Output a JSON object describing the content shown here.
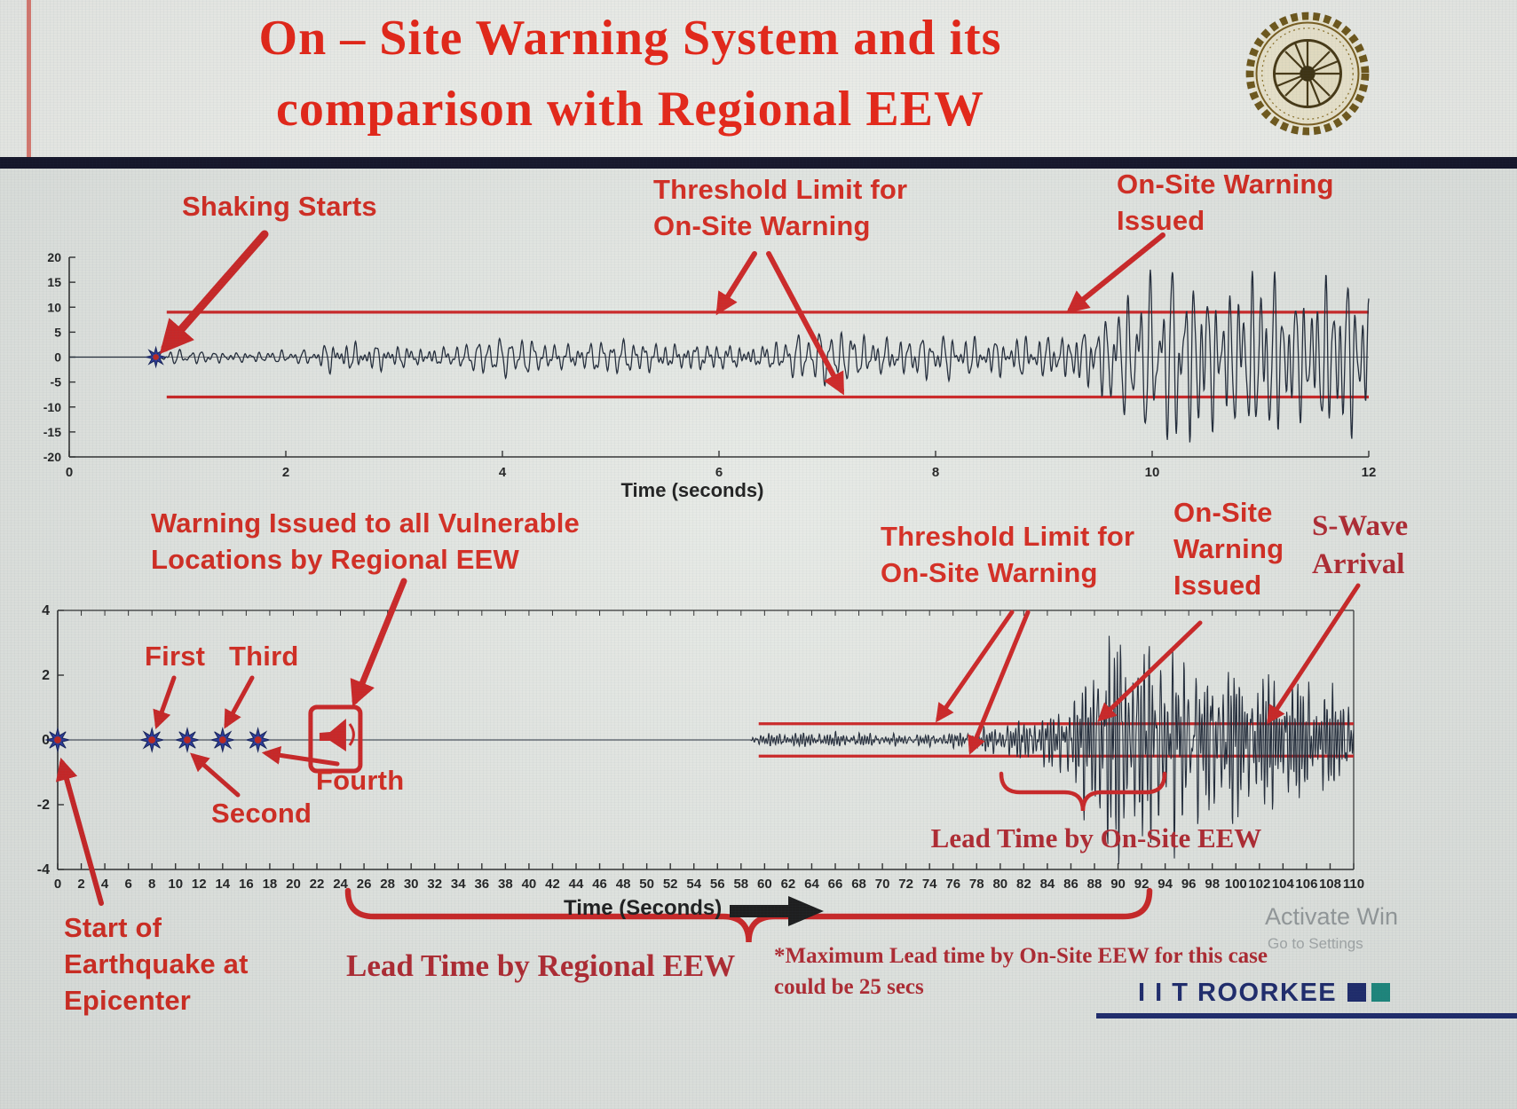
{
  "slide": {
    "title": "On – Site Warning System and its\ncomparison with Regional EEW"
  },
  "colors": {
    "title_red": "#ee1e0e",
    "annotation_red": "#d8251a",
    "serif_red": "#b3232b",
    "threshold_red": "#cf1f1f",
    "waveform": "#1b2433",
    "marker_blue": "#24359c",
    "marker_center_red": "#c22018",
    "brand_navy": "#18256b"
  },
  "labels": {
    "shaking_starts": "Shaking Starts",
    "threshold_limit_1": "Threshold Limit for\nOn-Site Warning",
    "onsite_warning_issued_1": "On-Site Warning\nIssued",
    "regional_warning": "Warning Issued to all Vulnerable\nLocations by Regional EEW",
    "threshold_limit_2": "Threshold Limit for\nOn-Site Warning",
    "onsite_warning_issued_2": "On-Site\nWarning\nIssued",
    "s_wave_arrival": "S-Wave\nArrival",
    "first": "First",
    "second": "Second",
    "third": "Third",
    "fourth": "Fourth",
    "lead_time_onsite": "Lead Time by On-Site EEW",
    "start_epicenter": "Start of\nEarthquake at\nEpicenter",
    "lead_time_regional": "Lead Time by Regional EEW",
    "max_lead_note": "*Maximum Lead time by On-Site EEW for this case\ncould be 25 secs",
    "brand": "I I T ROORKEE",
    "watermark_1": "Activate Win",
    "watermark_2": "Go to Settings"
  },
  "chart_data": [
    {
      "type": "line",
      "name": "on-site-warning-seismogram",
      "xlabel": "Time (seconds)",
      "xlim": [
        0,
        12
      ],
      "xticks": [
        0,
        2,
        4,
        6,
        8,
        10,
        12
      ],
      "ylim": [
        -20,
        20
      ],
      "yticks": [
        20,
        15,
        10,
        5,
        0,
        -5,
        -10,
        -15,
        -20
      ],
      "grid": false,
      "threshold_upper": 9,
      "threshold_lower": -8,
      "threshold_start_x": 0.9,
      "event_marker_x": 0.8,
      "envelope": [
        [
          0,
          0
        ],
        [
          0.78,
          0
        ],
        [
          0.85,
          1.0
        ],
        [
          1.5,
          1.1
        ],
        [
          2.2,
          1.4
        ],
        [
          2.45,
          4.0
        ],
        [
          3.0,
          3.2
        ],
        [
          3.6,
          2.8
        ],
        [
          4.4,
          3.8
        ],
        [
          5.4,
          4.3
        ],
        [
          6.4,
          3.8
        ],
        [
          7.4,
          4.8
        ],
        [
          8.4,
          4.2
        ],
        [
          9.1,
          4.6
        ],
        [
          9.5,
          7.5
        ],
        [
          10.0,
          11
        ],
        [
          10.35,
          16
        ],
        [
          10.7,
          12.5
        ],
        [
          11.05,
          15
        ],
        [
          11.35,
          11
        ],
        [
          11.65,
          15
        ],
        [
          12,
          12.5
        ]
      ],
      "annotations": [
        {
          "label": "Shaking Starts",
          "points_to_x": 0.8
        },
        {
          "label": "Threshold Limit for On-Site Warning",
          "points_to": "upper and lower red threshold lines"
        },
        {
          "label": "On-Site Warning Issued",
          "points_to_x": 9.2
        }
      ]
    },
    {
      "type": "line",
      "name": "regional-vs-onsite-comparison-seismogram",
      "xlabel": "Time (Seconds)",
      "xlim": [
        0,
        110
      ],
      "xtick_step": 2,
      "ylim": [
        -4,
        4
      ],
      "yticks": [
        4,
        2,
        0,
        -2,
        -4
      ],
      "grid": false,
      "threshold_upper": 0.5,
      "threshold_lower": -0.5,
      "threshold_start_x": 59.5,
      "p_wave_markers": [
        0,
        8,
        11,
        14,
        17
      ],
      "regional_warning_x": 23.5,
      "onsite_warning_issued_x": 80,
      "s_wave_arrival_x": 93,
      "lead_time_regional_span": [
        24,
        93
      ],
      "lead_time_onsite_span": [
        80,
        94
      ],
      "max_lead_time_note": "*Maximum Lead time by On-Site EEW for this case could be 25 secs",
      "envelope": [
        [
          0,
          0
        ],
        [
          58.8,
          0
        ],
        [
          59,
          0.1
        ],
        [
          61,
          0.16
        ],
        [
          64,
          0.18
        ],
        [
          68,
          0.22
        ],
        [
          72,
          0.2
        ],
        [
          76,
          0.22
        ],
        [
          79,
          0.3
        ],
        [
          82,
          0.45
        ],
        [
          85,
          0.65
        ],
        [
          87,
          1.3
        ],
        [
          88.5,
          2.3
        ],
        [
          90,
          3.1
        ],
        [
          91,
          2.4
        ],
        [
          92.5,
          3.0
        ],
        [
          94,
          2.6
        ],
        [
          95.5,
          3.0
        ],
        [
          97,
          2.2
        ],
        [
          99,
          2.6
        ],
        [
          101,
          2.0
        ],
        [
          103,
          1.8
        ],
        [
          105,
          1.6
        ],
        [
          107,
          1.35
        ],
        [
          110,
          1.1
        ]
      ],
      "annotations": [
        {
          "label": "Start of Earthquake at Epicenter",
          "points_to_x": 0
        },
        {
          "label": "First",
          "points_to_x": 8
        },
        {
          "label": "Second",
          "points_to_x": 11
        },
        {
          "label": "Third",
          "points_to_x": 14
        },
        {
          "label": "Fourth",
          "points_to_x": 17
        },
        {
          "label": "Warning Issued to all Vulnerable Locations by Regional EEW",
          "points_to_x": 23.5
        },
        {
          "label": "Threshold Limit for On-Site Warning",
          "points_to": "red threshold lines"
        },
        {
          "label": "On-Site Warning Issued",
          "points_to_x": 80
        },
        {
          "label": "S-Wave Arrival",
          "points_to_x": 93
        },
        {
          "label": "Lead Time by On-Site EEW",
          "span": [
            80,
            94
          ]
        },
        {
          "label": "Lead Time by Regional EEW",
          "span": [
            24,
            93
          ]
        }
      ]
    }
  ]
}
